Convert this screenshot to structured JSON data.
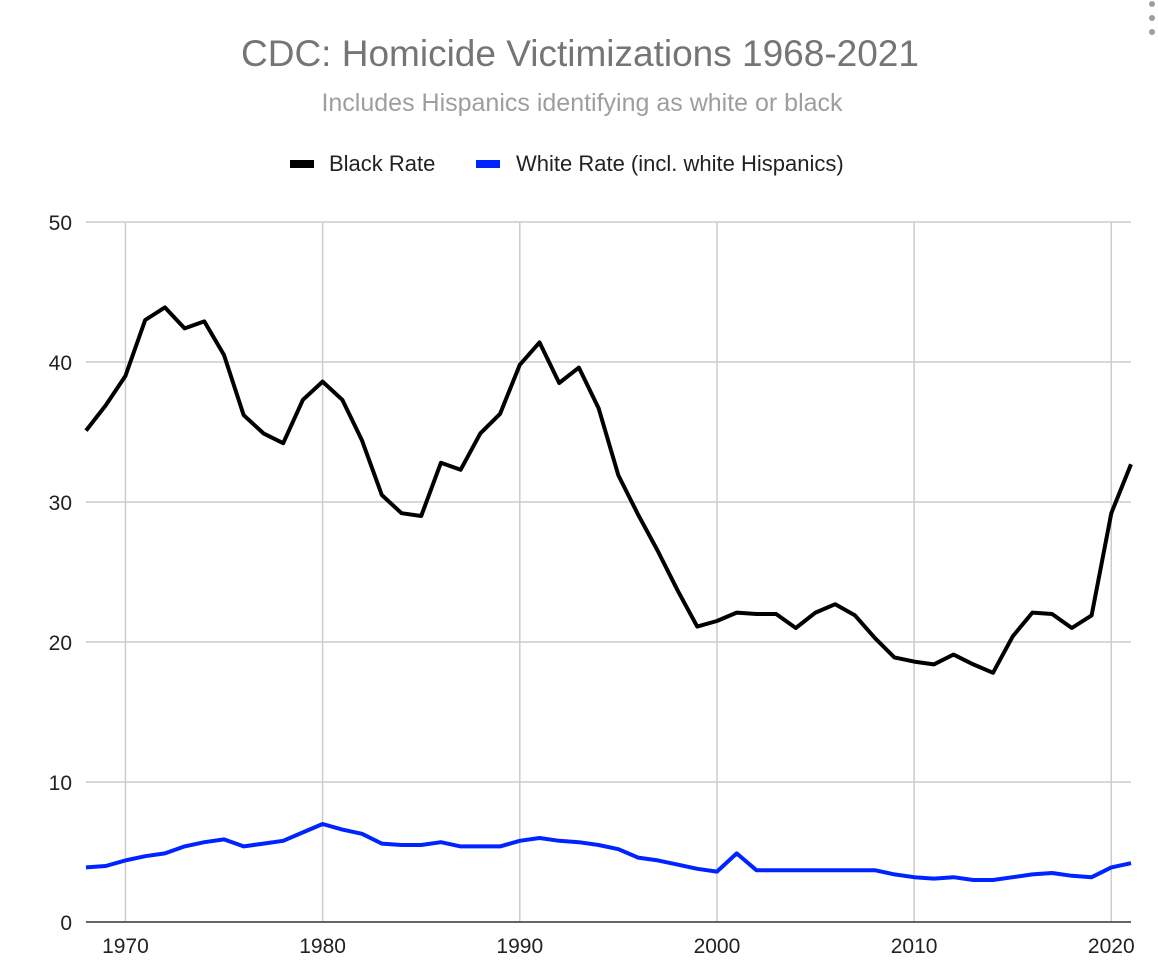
{
  "chart_data": {
    "type": "line",
    "title": "CDC: Homicide Victimizations 1968-2021",
    "subtitle": "Includes Hispanics identifying as white or black",
    "xlabel": "",
    "ylabel": "",
    "xlim": [
      1968,
      2021
    ],
    "ylim": [
      0,
      50
    ],
    "x_ticks": [
      1970,
      1980,
      1990,
      2000,
      2010,
      2020
    ],
    "y_ticks": [
      0,
      10,
      20,
      30,
      40,
      50
    ],
    "grid": true,
    "legend_position": "top",
    "x": [
      1968,
      1969,
      1970,
      1971,
      1972,
      1973,
      1974,
      1975,
      1976,
      1977,
      1978,
      1979,
      1980,
      1981,
      1982,
      1983,
      1984,
      1985,
      1986,
      1987,
      1988,
      1989,
      1990,
      1991,
      1992,
      1993,
      1994,
      1995,
      1996,
      1997,
      1998,
      1999,
      2000,
      2001,
      2002,
      2003,
      2004,
      2005,
      2006,
      2007,
      2008,
      2009,
      2010,
      2011,
      2012,
      2013,
      2014,
      2015,
      2016,
      2017,
      2018,
      2019,
      2020,
      2021
    ],
    "series": [
      {
        "name": "Black Rate",
        "color": "#000000",
        "values": [
          35.1,
          36.9,
          39.0,
          43.0,
          43.9,
          42.4,
          42.9,
          40.5,
          36.2,
          34.9,
          34.2,
          37.3,
          38.6,
          37.3,
          34.4,
          30.5,
          29.2,
          29.0,
          32.8,
          32.3,
          34.9,
          36.3,
          39.8,
          41.4,
          38.5,
          39.6,
          36.7,
          31.9,
          29.1,
          26.5,
          23.7,
          21.1,
          21.5,
          22.1,
          22.0,
          22.0,
          21.0,
          22.1,
          22.7,
          21.9,
          20.3,
          18.9,
          18.6,
          18.4,
          19.1,
          18.4,
          17.8,
          20.4,
          22.1,
          22.0,
          21.0,
          21.9,
          29.2,
          32.7
        ]
      },
      {
        "name": "White Rate (incl. white Hispanics)",
        "color": "#0024ff",
        "values": [
          3.9,
          4.0,
          4.4,
          4.7,
          4.9,
          5.4,
          5.7,
          5.9,
          5.4,
          5.6,
          5.8,
          6.4,
          7.0,
          6.6,
          6.3,
          5.6,
          5.5,
          5.5,
          5.7,
          5.4,
          5.4,
          5.4,
          5.8,
          6.0,
          5.8,
          5.7,
          5.5,
          5.2,
          4.6,
          4.4,
          4.1,
          3.8,
          3.6,
          4.9,
          3.7,
          3.7,
          3.7,
          3.7,
          3.7,
          3.7,
          3.7,
          3.4,
          3.2,
          3.1,
          3.2,
          3.0,
          3.0,
          3.2,
          3.4,
          3.5,
          3.3,
          3.2,
          3.9,
          4.2
        ]
      }
    ]
  }
}
